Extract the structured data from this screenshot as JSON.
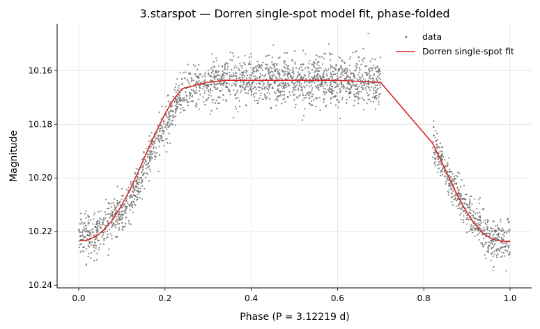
{
  "chart_data": {
    "type": "scatter",
    "title": "3.starspot — Dorren single-spot model fit, phase-folded",
    "xlabel": "Phase (P = 3.12219 d)",
    "ylabel": "Magnitude",
    "xlim": [
      -0.05,
      1.05
    ],
    "ylim": [
      10.241,
      10.1425
    ],
    "y_inverted": true,
    "grid": true,
    "legend_position": "top-right",
    "x_ticks": [
      "0.0",
      "0.2",
      "0.4",
      "0.6",
      "0.8",
      "1.0"
    ],
    "x_tick_values": [
      0.0,
      0.2,
      0.4,
      0.6,
      0.8,
      1.0
    ],
    "y_ticks": [
      "10.16",
      "10.18",
      "10.20",
      "10.22",
      "10.24"
    ],
    "y_tick_values": [
      10.16,
      10.18,
      10.2,
      10.22,
      10.24
    ],
    "series": [
      {
        "name": "data",
        "kind": "points",
        "color": "#6e6e6e",
        "x_range": [
          0.0,
          1.0
        ],
        "gap": [
          0.7,
          0.82
        ],
        "count": 2600,
        "scatter_sigma": 0.005,
        "model_phase_offset": 0.012,
        "model_offset_early": 0.002
      },
      {
        "name": "Dorren single-spot fit",
        "kind": "line",
        "color": "#d62728",
        "x": [
          0.0,
          0.02,
          0.04,
          0.06,
          0.08,
          0.1,
          0.12,
          0.14,
          0.16,
          0.18,
          0.2,
          0.22,
          0.24,
          0.26,
          0.28,
          0.3,
          0.32,
          0.34,
          0.36,
          0.4,
          0.5,
          0.6,
          0.7,
          0.82,
          0.84,
          0.86,
          0.88,
          0.9,
          0.92,
          0.94,
          0.96,
          0.98,
          1.0
        ],
        "y": [
          10.2235,
          10.2232,
          10.2218,
          10.2192,
          10.2153,
          10.2101,
          10.204,
          10.197,
          10.1897,
          10.1826,
          10.1761,
          10.1707,
          10.1667,
          10.166,
          10.165,
          10.1643,
          10.164,
          10.1636,
          10.1636,
          10.1636,
          10.1636,
          10.1636,
          10.1644,
          10.187,
          10.1935,
          10.2005,
          10.2072,
          10.2129,
          10.2176,
          10.221,
          10.2229,
          10.2236,
          10.2237
        ]
      }
    ]
  }
}
